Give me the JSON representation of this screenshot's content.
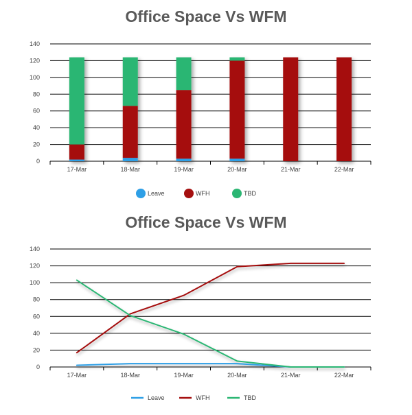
{
  "colors": {
    "Leave": "#2E9FE6",
    "WFH": "#A50F0F",
    "TBD": "#2BB673"
  },
  "chart_data": [
    {
      "type": "bar",
      "stacked": true,
      "title": "Office Space Vs WFM",
      "categories": [
        "17-Mar",
        "18-Mar",
        "19-Mar",
        "20-Mar",
        "21-Mar",
        "22-Mar"
      ],
      "series": [
        {
          "name": "Leave",
          "values": [
            2,
            4,
            3,
            3,
            0,
            0
          ]
        },
        {
          "name": "WFH",
          "values": [
            18,
            62,
            82,
            117,
            124,
            124
          ]
        },
        {
          "name": "TBD",
          "values": [
            104,
            58,
            39,
            4,
            0,
            0
          ]
        }
      ],
      "yticks": [
        "0",
        "20",
        "40",
        "60",
        "80",
        "100",
        "120",
        "140"
      ],
      "ylim": [
        0,
        140
      ],
      "grid": true,
      "legend_position": "bottom",
      "legend_labels": [
        "Leave",
        "WFH",
        "TBD"
      ]
    },
    {
      "type": "line",
      "title": "Office Space Vs WFM",
      "categories": [
        "17-Mar",
        "18-Mar",
        "19-Mar",
        "20-Mar",
        "21-Mar",
        "22-Mar"
      ],
      "series": [
        {
          "name": "Leave",
          "values": [
            2,
            4,
            4,
            4,
            0,
            0
          ]
        },
        {
          "name": "WFH",
          "values": [
            17,
            63,
            85,
            119,
            123,
            123
          ]
        },
        {
          "name": "TBD",
          "values": [
            103,
            61,
            39,
            7,
            0,
            0
          ]
        }
      ],
      "yticks": [
        "0",
        "20",
        "40",
        "60",
        "80",
        "100",
        "120",
        "140"
      ],
      "ylim": [
        0,
        140
      ],
      "grid": true,
      "legend_position": "bottom",
      "legend_labels": [
        "Leave",
        "WFH",
        "TBD"
      ]
    }
  ]
}
